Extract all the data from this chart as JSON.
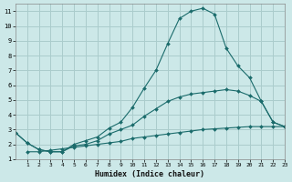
{
  "xlabel": "Humidex (Indice chaleur)",
  "background_color": "#cce8e8",
  "grid_color": "#aacccc",
  "line_color": "#1a6b6b",
  "xlim": [
    0,
    23
  ],
  "ylim": [
    1,
    11.5
  ],
  "xticks": [
    1,
    2,
    3,
    4,
    5,
    6,
    7,
    8,
    9,
    10,
    11,
    12,
    13,
    14,
    15,
    16,
    17,
    18,
    19,
    20,
    21,
    22,
    23
  ],
  "yticks": [
    1,
    2,
    3,
    4,
    5,
    6,
    7,
    8,
    9,
    10,
    11
  ],
  "line1_x": [
    0,
    1,
    2,
    3,
    4,
    5,
    6,
    7,
    8,
    9,
    10,
    11,
    12,
    13,
    14,
    15,
    16,
    17,
    18,
    19,
    20,
    21,
    22,
    23
  ],
  "line1_y": [
    2.8,
    2.1,
    1.65,
    1.5,
    1.5,
    2.0,
    2.25,
    2.5,
    3.1,
    3.5,
    4.5,
    5.8,
    7.0,
    8.8,
    10.5,
    11.0,
    11.2,
    10.8,
    8.5,
    7.3,
    6.5,
    4.9,
    3.5,
    3.2
  ],
  "line2_x": [
    0,
    1,
    2,
    3,
    4,
    5,
    6,
    7,
    8,
    9,
    10,
    11,
    12,
    13,
    14,
    15,
    16,
    17,
    18,
    19,
    20,
    21,
    22,
    23
  ],
  "line2_y": [
    2.8,
    2.1,
    1.65,
    1.5,
    1.5,
    1.9,
    2.0,
    2.25,
    2.7,
    3.0,
    3.3,
    3.9,
    4.4,
    4.9,
    5.2,
    5.4,
    5.5,
    5.6,
    5.7,
    5.6,
    5.3,
    4.9,
    3.5,
    3.2
  ],
  "line3_x": [
    1,
    2,
    3,
    4,
    5,
    6,
    7,
    8,
    9,
    10,
    11,
    12,
    13,
    14,
    15,
    16,
    17,
    18,
    19,
    20,
    21,
    22,
    23
  ],
  "line3_y": [
    1.5,
    1.5,
    1.6,
    1.7,
    1.8,
    1.9,
    2.0,
    2.1,
    2.2,
    2.4,
    2.5,
    2.6,
    2.7,
    2.8,
    2.9,
    3.0,
    3.05,
    3.1,
    3.15,
    3.2,
    3.2,
    3.2,
    3.2
  ]
}
